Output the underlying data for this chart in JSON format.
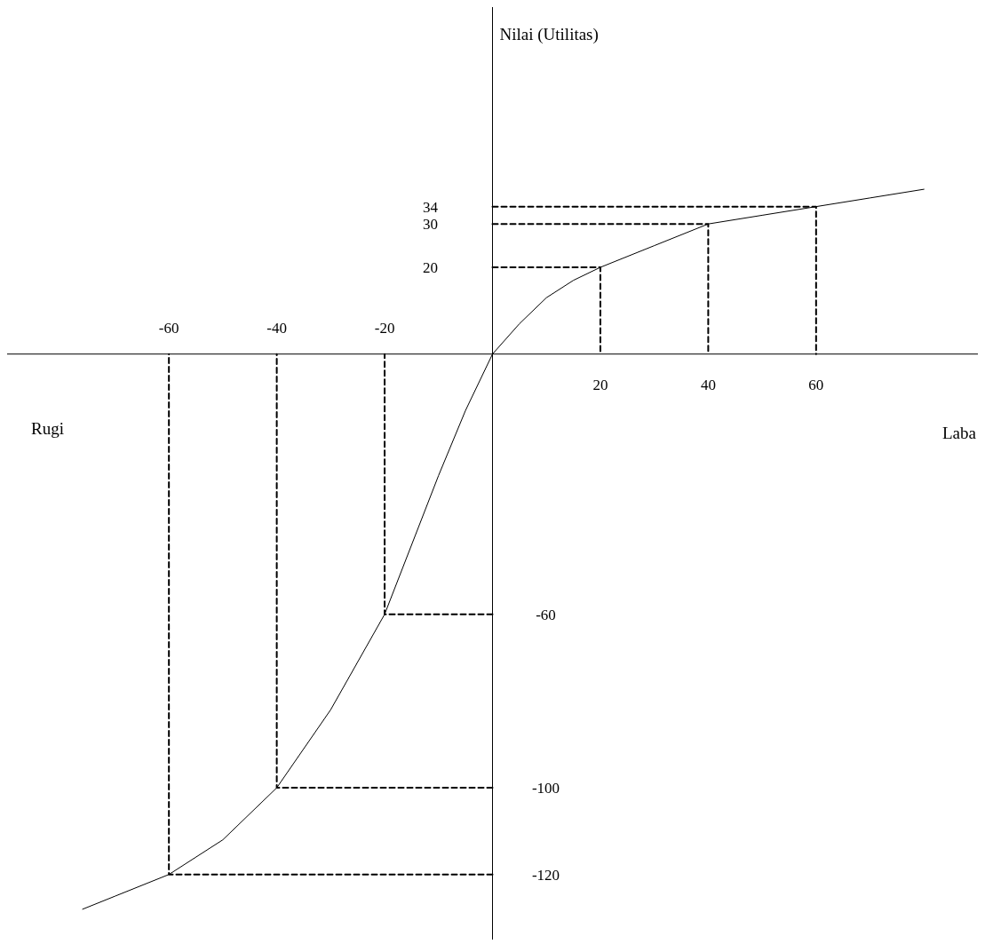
{
  "chart_data": {
    "type": "line",
    "xlabel": "Laba",
    "ylabel": "Nilai (Utilitas)",
    "annotations": [
      "Rugi"
    ],
    "xlim": [
      -90,
      90
    ],
    "ylim": [
      -135,
      80
    ],
    "xticks": [
      20,
      40,
      60
    ],
    "x2lim": [
      -90,
      90
    ],
    "x2ticks": [
      -60,
      -40,
      -20
    ],
    "yticks": [
      -120,
      -100,
      -60
    ],
    "y2lim": [
      -135,
      80
    ],
    "y2ticks": [
      20,
      30,
      34
    ],
    "grid": false,
    "marker": "none",
    "series": [
      {
        "color": "#000000",
        "line_style": "solid",
        "x": [
          -76,
          -70,
          -60,
          -50,
          -40,
          -30,
          -20,
          -10,
          -5,
          0,
          5,
          10,
          15,
          20,
          30,
          40,
          50,
          60,
          70,
          80
        ],
        "values": [
          -128,
          -125,
          -120,
          -112,
          -100,
          -82,
          -60,
          -28,
          -13,
          0,
          7,
          13,
          17,
          20,
          25,
          30,
          32,
          34,
          36,
          38
        ]
      },
      {
        "color": "#000000",
        "line_style": "dashed",
        "x": [
          0,
          -20,
          -20
        ],
        "values": [
          -60,
          -60,
          0
        ]
      },
      {
        "color": "#000000",
        "line_style": "dashed",
        "x": [
          0,
          -40,
          -40
        ],
        "values": [
          -100,
          -100,
          0
        ]
      },
      {
        "color": "#000000",
        "line_style": "dashed",
        "x": [
          0,
          -60,
          -60
        ],
        "values": [
          -120,
          -120,
          0
        ]
      },
      {
        "color": "#000000",
        "line_style": "dashed",
        "x": [
          0,
          20,
          20
        ],
        "values": [
          20,
          20,
          0
        ]
      },
      {
        "color": "#000000",
        "line_style": "dashed",
        "x": [
          0,
          40,
          40
        ],
        "values": [
          30,
          30,
          0
        ]
      },
      {
        "color": "#000000",
        "line_style": "dashed",
        "x": [
          0,
          60,
          60
        ],
        "values": [
          34,
          34,
          0
        ]
      }
    ]
  }
}
